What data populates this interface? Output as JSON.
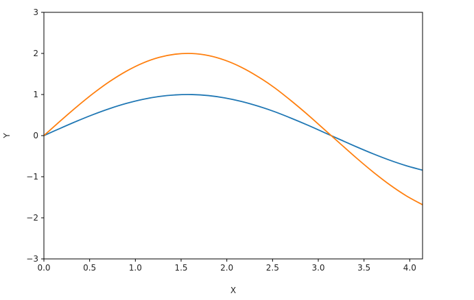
{
  "chart_data": {
    "type": "line",
    "x_label": "X",
    "y_label": "Y",
    "x": [
      0,
      0.18,
      0.36,
      0.54,
      0.72,
      0.9,
      1.08,
      1.26,
      1.44,
      1.62,
      1.8,
      1.98,
      2.16,
      2.34,
      2.52,
      2.7,
      2.88,
      3.06,
      3.24,
      3.42,
      3.6,
      3.78,
      3.96,
      4.14
    ],
    "series": [
      {
        "color": "#1f77b4",
        "values": [
          0,
          0.179,
          0.352,
          0.514,
          0.659,
          0.783,
          0.882,
          0.952,
          0.991,
          0.999,
          0.974,
          0.917,
          0.831,
          0.718,
          0.584,
          0.427,
          0.259,
          0.081,
          -0.098,
          -0.275,
          -0.443,
          -0.597,
          -0.731,
          -0.841
        ]
      },
      {
        "color": "#ff7f0e",
        "values": [
          0,
          0.358,
          0.704,
          1.028,
          1.318,
          1.566,
          1.764,
          1.904,
          1.982,
          1.998,
          1.948,
          1.834,
          1.662,
          1.436,
          1.168,
          0.854,
          0.518,
          0.162,
          -0.196,
          -0.55,
          -0.886,
          -1.194,
          -1.462,
          -1.682
        ]
      }
    ],
    "xlim": [
      0,
      4.14
    ],
    "xticks": [
      {
        "value": 0,
        "label": "0.0"
      },
      0.5,
      {
        "value": 1,
        "label": "1.0"
      },
      1.5,
      {
        "value": 2,
        "label": "2.0"
      },
      2.5,
      {
        "value": 3,
        "label": "3.0"
      },
      3.5,
      {
        "value": 4,
        "label": "4.0"
      }
    ],
    "ylim": [
      -3,
      3
    ],
    "yticks": [
      {
        "value": -3,
        "label": "−3"
      },
      {
        "value": -2,
        "label": "−2"
      },
      {
        "value": -1,
        "label": "−1"
      },
      0,
      1,
      2,
      3
    ],
    "grid": false
  }
}
